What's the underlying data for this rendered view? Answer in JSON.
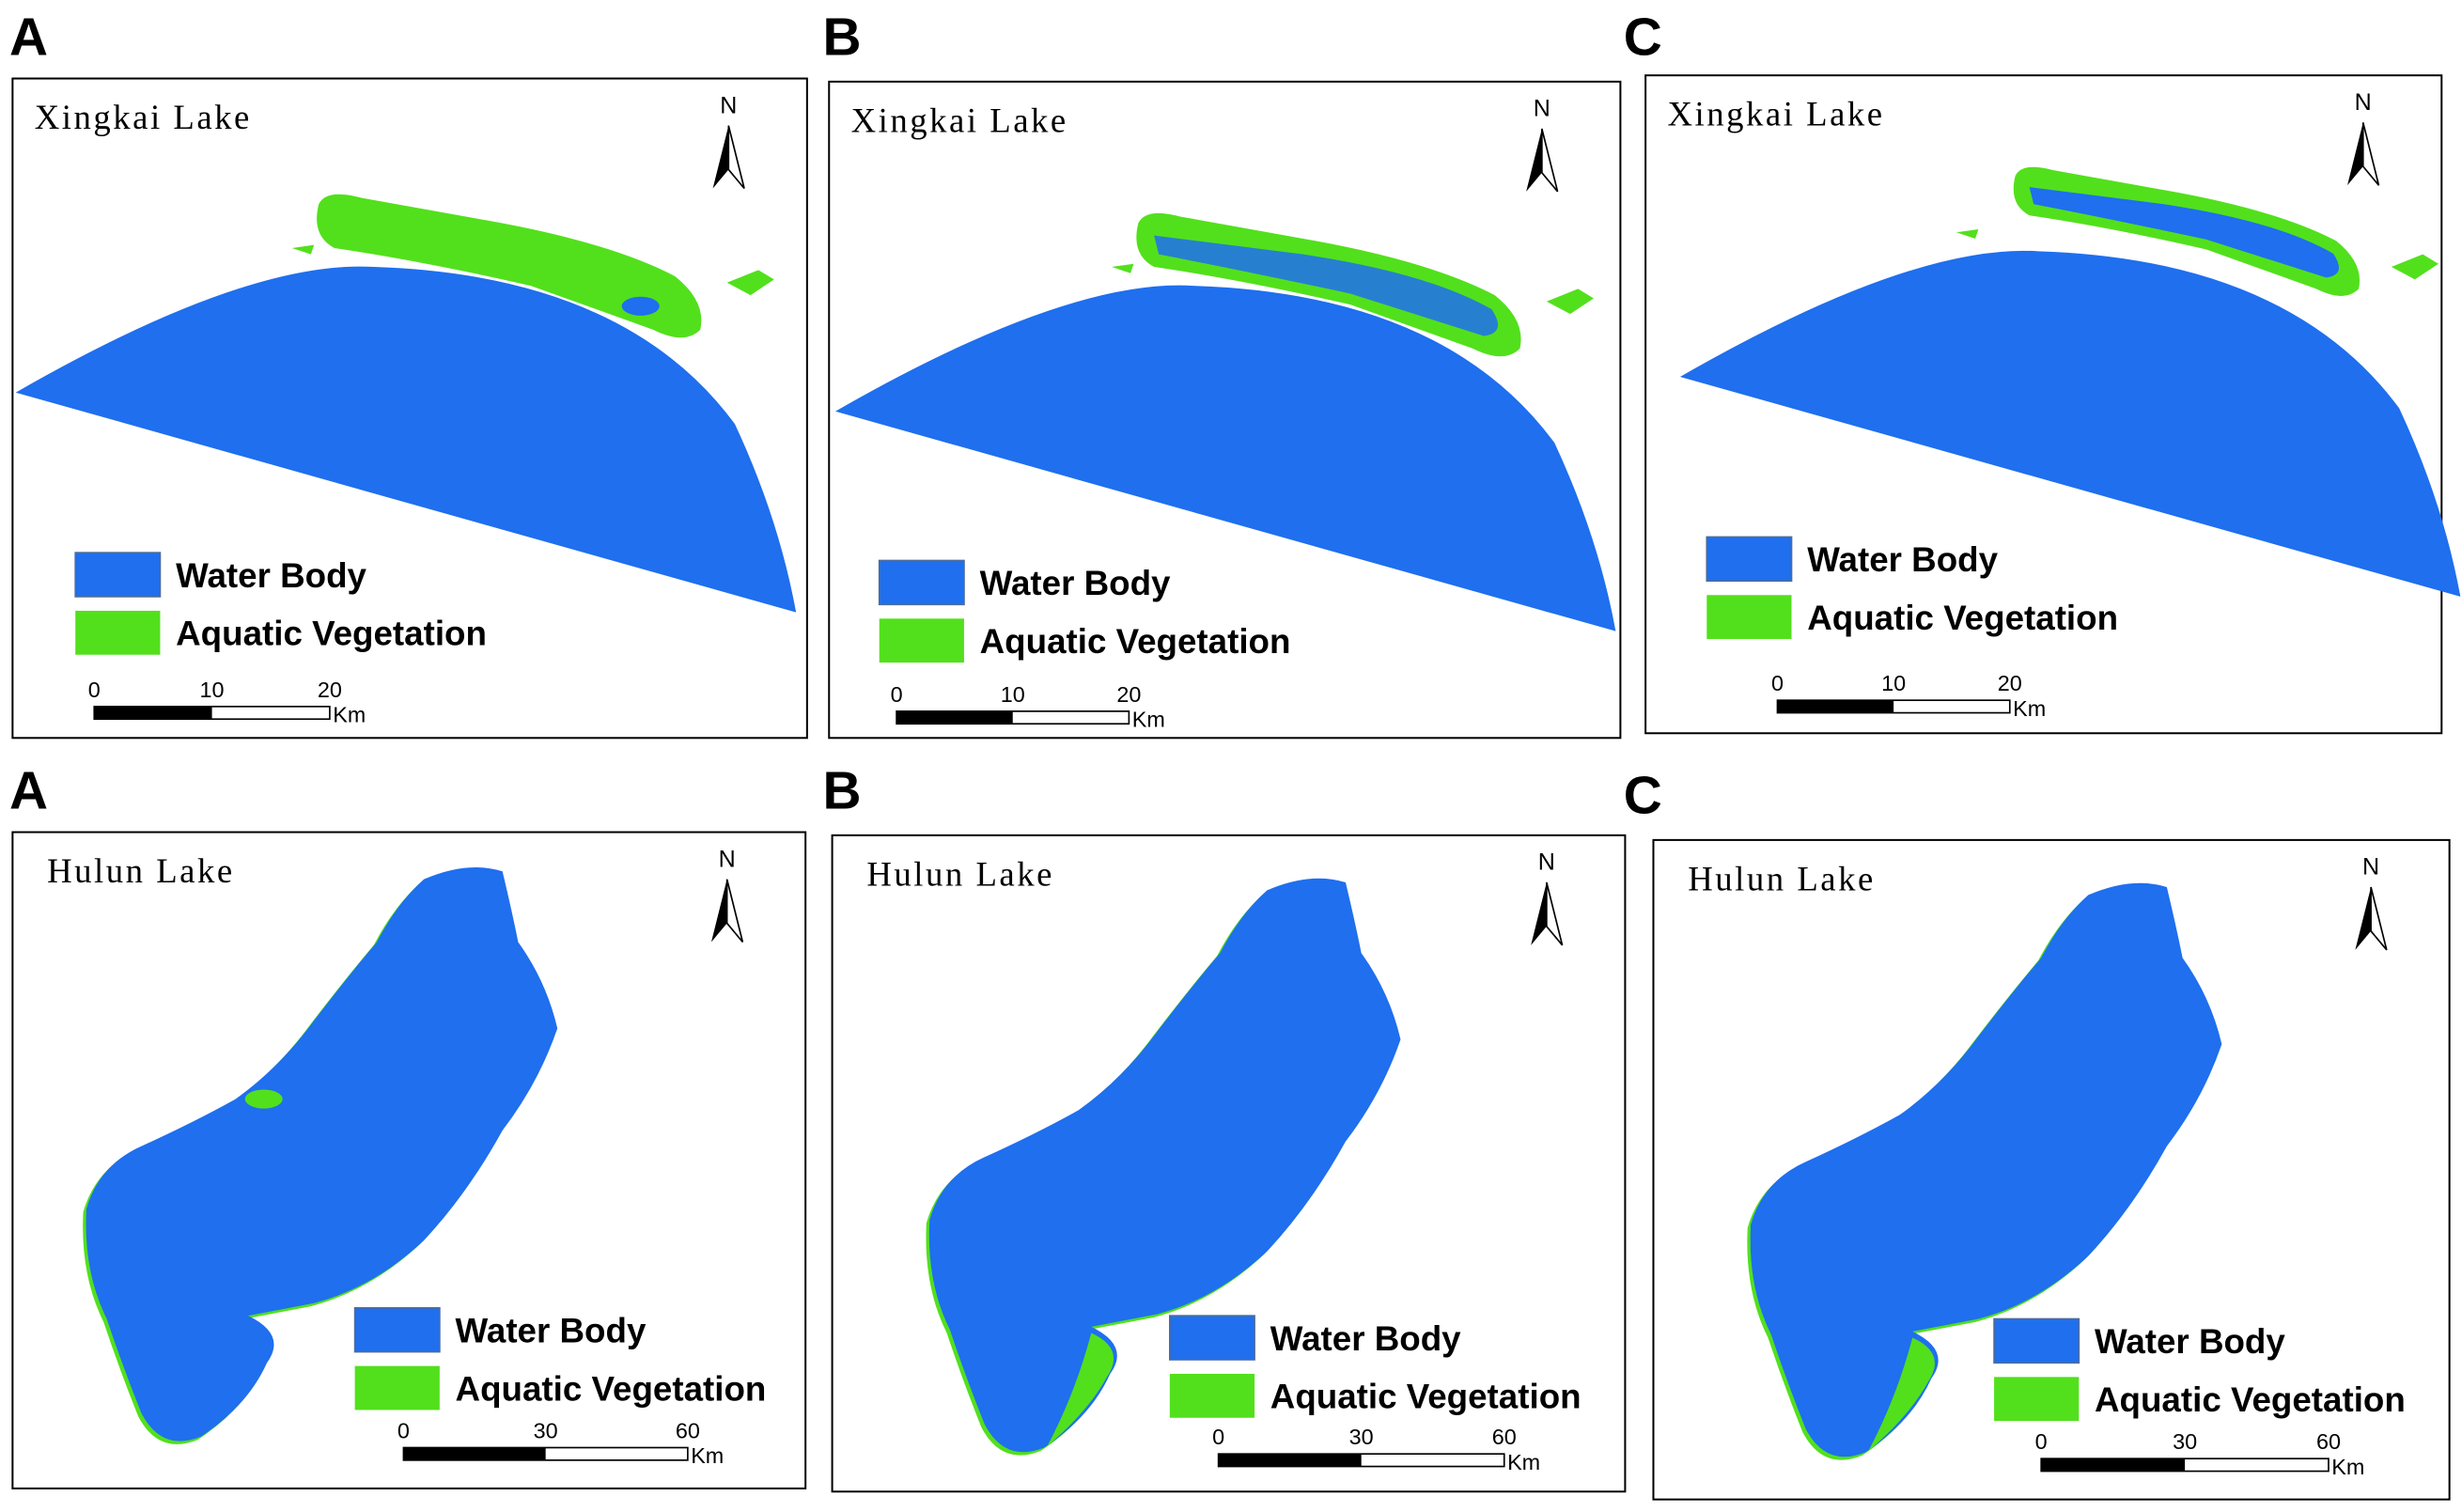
{
  "colors": {
    "water": "#1f6fee",
    "vegetation": "#52e01c"
  },
  "panels": [
    {
      "letter": "A",
      "lake": "Xingkai Lake",
      "north": "N",
      "legend": [
        "Water Body",
        "Aquatic Vegetation"
      ],
      "scale": {
        "ticks": [
          0,
          10,
          20
        ],
        "unit": "Km"
      }
    },
    {
      "letter": "B",
      "lake": "Xingkai Lake",
      "north": "N",
      "legend": [
        "Water Body",
        "Aquatic Vegetation"
      ],
      "scale": {
        "ticks": [
          0,
          10,
          20
        ],
        "unit": "Km"
      }
    },
    {
      "letter": "C",
      "lake": "Xingkai Lake",
      "north": "N",
      "legend": [
        "Water Body",
        "Aquatic Vegetation"
      ],
      "scale": {
        "ticks": [
          0,
          10,
          20
        ],
        "unit": "Km"
      }
    },
    {
      "letter": "A",
      "lake": "Hulun Lake",
      "north": "N",
      "legend": [
        "Water Body",
        "Aquatic Vegetation"
      ],
      "scale": {
        "ticks": [
          0,
          30,
          60
        ],
        "unit": "Km"
      }
    },
    {
      "letter": "B",
      "lake": "Hulun Lake",
      "north": "N",
      "legend": [
        "Water Body",
        "Aquatic Vegetation"
      ],
      "scale": {
        "ticks": [
          0,
          30,
          60
        ],
        "unit": "Km"
      }
    },
    {
      "letter": "C",
      "lake": "Hulun Lake",
      "north": "N",
      "legend": [
        "Water Body",
        "Aquatic Vegetation"
      ],
      "scale": {
        "ticks": [
          0,
          30,
          60
        ],
        "unit": "Km"
      }
    }
  ]
}
